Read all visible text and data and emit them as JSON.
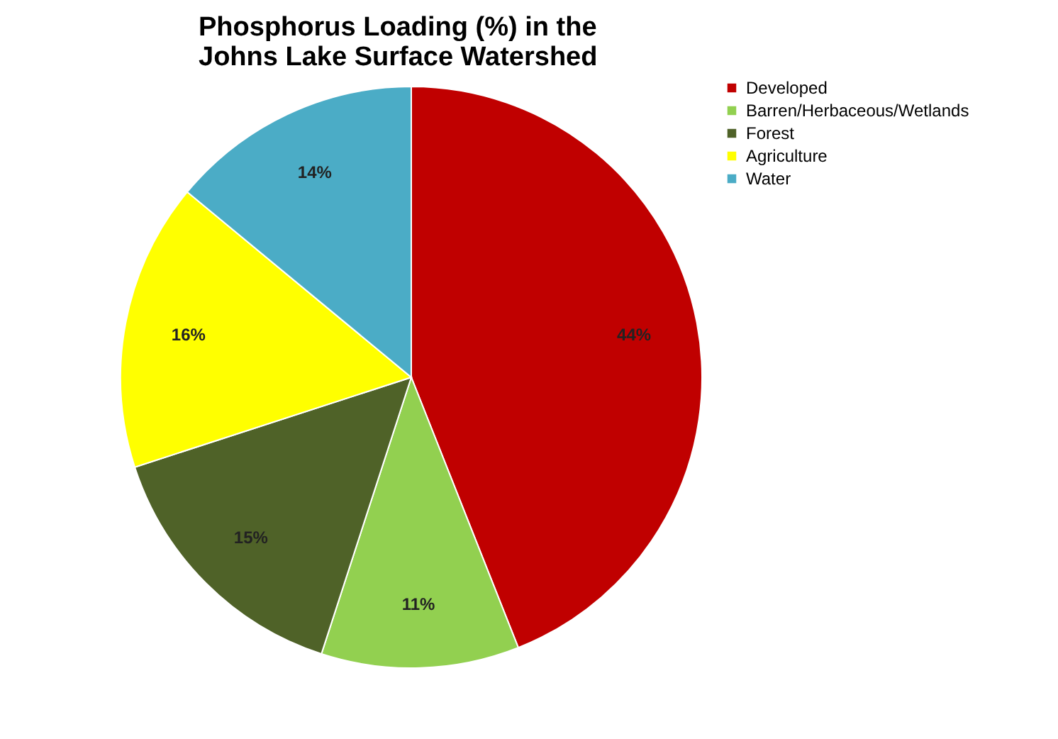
{
  "chart_data": {
    "type": "pie",
    "title": [
      "Phosphorus Loading (%)  in the",
      "Johns Lake Surface Watershed"
    ],
    "categories": [
      "Developed",
      "Barren/Herbaceous/Wetlands",
      "Forest",
      "Agriculture",
      "Water"
    ],
    "values": [
      44,
      11,
      15,
      16,
      14
    ],
    "value_labels": [
      "44%",
      "11%",
      "15%",
      "16%",
      "14%"
    ],
    "colors": [
      "#c00000",
      "#92d050",
      "#4f6228",
      "#ffff00",
      "#4bacc6"
    ],
    "legend": "right"
  }
}
